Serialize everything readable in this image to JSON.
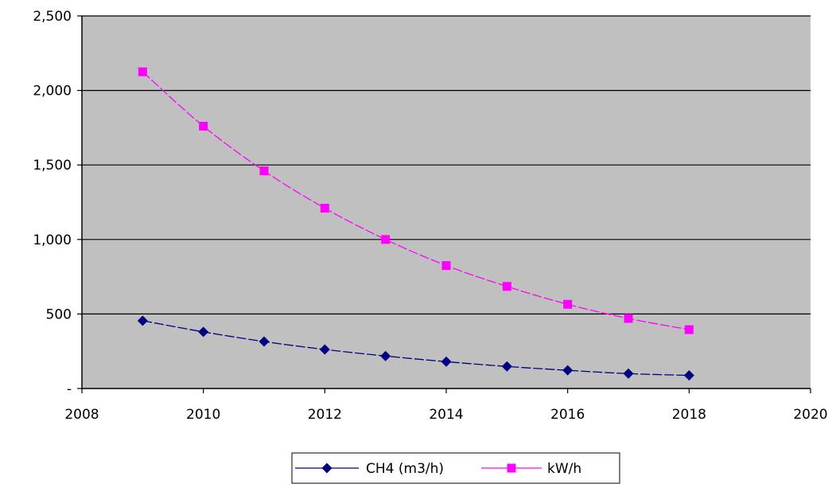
{
  "chart_data": {
    "type": "line",
    "title": "",
    "xlabel": "",
    "ylabel": "",
    "xlim": [
      2008,
      2020
    ],
    "ylim": [
      0,
      2500
    ],
    "x_ticks": [
      2008,
      2010,
      2012,
      2014,
      2016,
      2018,
      2020
    ],
    "x_tick_labels": [
      "2008",
      "2010",
      "2012",
      "2014",
      "2016",
      "2018",
      "2020"
    ],
    "y_ticks": [
      0,
      500,
      1000,
      1500,
      2000,
      2500
    ],
    "y_tick_labels": [
      "-",
      "500",
      "1,000",
      "1,500",
      "2,000",
      "2,500"
    ],
    "grid": "horizontal",
    "plot_background": "#c0c0c0",
    "legend_position": "bottom",
    "x": [
      2009,
      2010,
      2011,
      2012,
      2013,
      2014,
      2015,
      2016,
      2017,
      2018
    ],
    "series": [
      {
        "name": "CH4 (m3/h)",
        "color": "#000080",
        "marker": "diamond",
        "values": [
          455,
          380,
          315,
          262,
          218,
          180,
          148,
          122,
          100,
          88
        ]
      },
      {
        "name": "kW/h",
        "color": "#ff00ff",
        "marker": "square",
        "values": [
          2125,
          1760,
          1460,
          1210,
          1000,
          825,
          685,
          565,
          470,
          395
        ]
      }
    ]
  }
}
